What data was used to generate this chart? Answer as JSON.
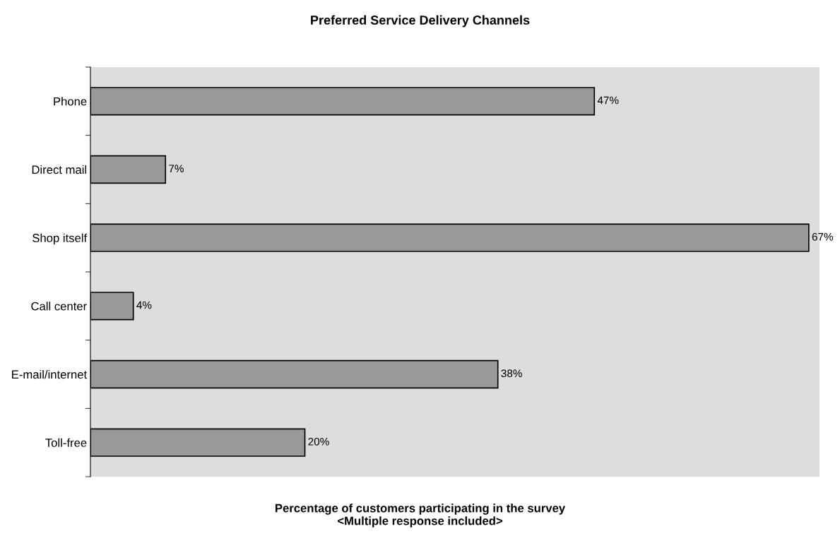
{
  "chart_data": {
    "type": "bar",
    "orientation": "horizontal",
    "title": "Preferred Service Delivery Channels",
    "xlabel": "Percentage of customers participating in the survey\n<Multiple response included>",
    "categories": [
      "Phone",
      "Direct mail",
      "Shop itself",
      "Call center",
      "E-mail/internet",
      "Toll-free"
    ],
    "values": [
      47,
      7,
      67,
      4,
      38,
      20
    ],
    "value_labels": [
      "47%",
      "7%",
      "67%",
      "4%",
      "38%",
      "20%"
    ],
    "color": "#999999",
    "xlim": [
      0,
      68
    ],
    "tick_labels": "y",
    "grid": false,
    "legend": false
  }
}
